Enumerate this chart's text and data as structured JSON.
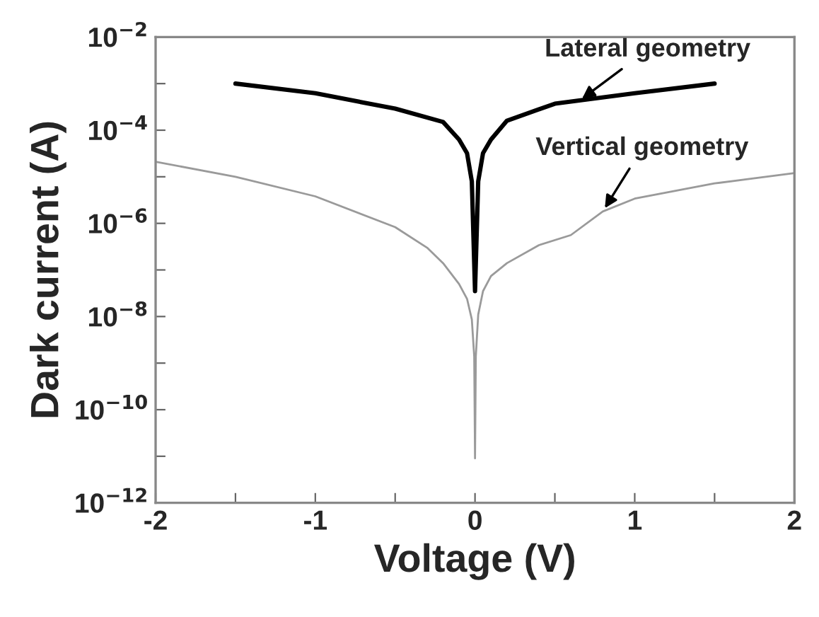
{
  "chart_data": {
    "type": "line",
    "xlabel": "Voltage (V)",
    "ylabel": "Dark current (A)",
    "log": "y",
    "xlim": [
      -2,
      2
    ],
    "ylim": [
      1e-12,
      0.01
    ],
    "xticks": [
      -2,
      {
        "value": -1.5,
        "label": null
      },
      -1,
      {
        "value": -0.5,
        "label": null
      },
      0,
      {
        "value": 0.5,
        "label": null
      },
      1,
      {
        "value": 1.5,
        "label": null
      },
      2
    ],
    "yticks": [
      {
        "value": 1e-12,
        "label": "10$^{−12}$"
      },
      {
        "value": 1e-11,
        "label": null
      },
      {
        "value": 1e-10,
        "label": "10$^{−10}$"
      },
      {
        "value": 1e-09,
        "label": null
      },
      {
        "value": 1e-08,
        "label": "10$^{−8}$"
      },
      {
        "value": 1e-07,
        "label": null
      },
      {
        "value": 1e-06,
        "label": "10$^{−6}$"
      },
      {
        "value": 1e-05,
        "label": null
      },
      {
        "value": 0.0001,
        "label": "10$^{−4}$"
      },
      {
        "value": 0.001,
        "label": null
      },
      {
        "value": 0.01,
        "label": "10$^{−2}$"
      }
    ],
    "grid": false,
    "legend": false,
    "series": [
      {
        "color": "#000000",
        "x": [
          -1.5,
          -1,
          -0.5,
          -0.2,
          -0.1,
          -0.05,
          -0.02,
          0,
          0.02,
          0.05,
          0.1,
          0.2,
          0.5,
          1,
          1.5
        ],
        "values": [
          0.001,
          0.00062,
          0.00029,
          0.00015,
          6.3e-05,
          3.2e-05,
          8e-06,
          3.5e-08,
          8e-06,
          3.2e-05,
          6.3e-05,
          0.00016,
          0.00037,
          0.00062,
          0.001
        ]
      },
      {
        "color": "#9a9a9a",
        "x": [
          -2,
          -1.5,
          -1,
          -0.5,
          -0.3,
          -0.2,
          -0.1,
          -0.05,
          -0.02,
          -0.005,
          0,
          0.005,
          0.02,
          0.05,
          0.1,
          0.2,
          0.4,
          0.6,
          0.8,
          1,
          1.5,
          2
        ],
        "values": [
          2.1e-05,
          1e-05,
          3.8e-06,
          8.3e-07,
          3e-07,
          1.4e-07,
          5e-08,
          2.4e-08,
          8.7e-09,
          1.4e-09,
          9e-12,
          1.4e-09,
          1.1e-08,
          3.5e-08,
          7.4e-08,
          1.4e-07,
          3.4e-07,
          5.6e-07,
          1.8e-06,
          3.4e-06,
          7.2e-06,
          1.2e-05
        ]
      }
    ],
    "annotations": [
      {
        "text": "Lateral geometry",
        "x": 0.65,
        "y": 0.00042
      },
      {
        "text": "Vertical geometry",
        "x": 0.8,
        "y": 1.8e-06
      }
    ]
  }
}
